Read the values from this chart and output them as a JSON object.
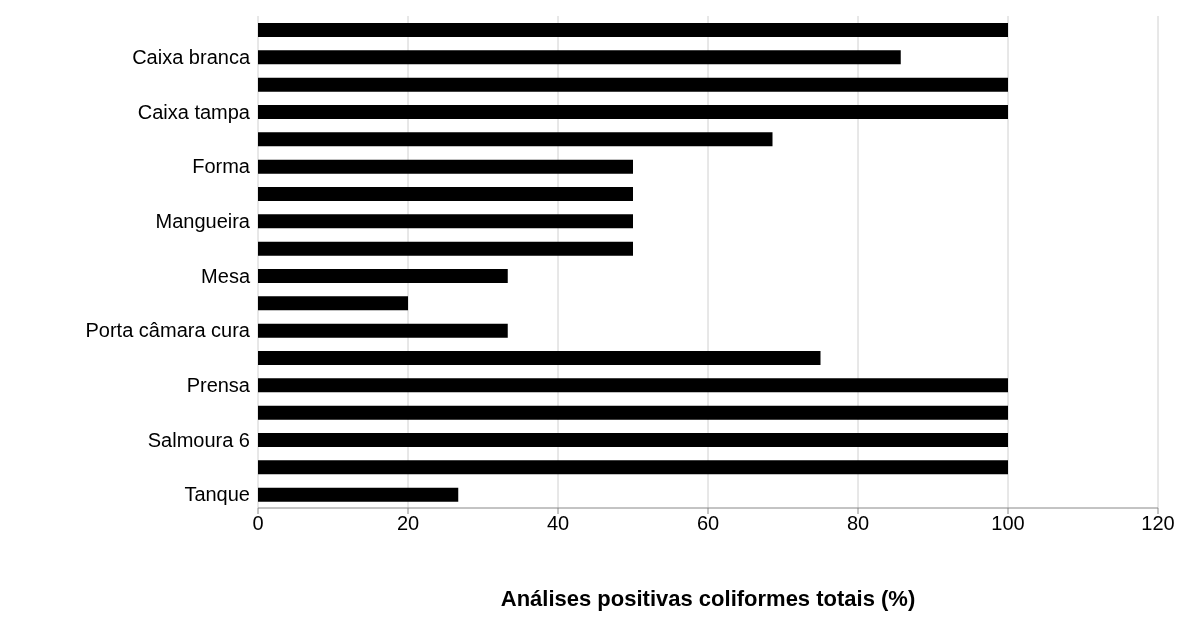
{
  "chart_data": {
    "type": "bar",
    "orientation": "horizontal",
    "xlabel": "Análises positivas coliformes totais (%)",
    "categories": [
      null,
      "Caixa branca",
      null,
      "Caixa tampa",
      null,
      "Forma",
      null,
      "Mangueira",
      null,
      "Mesa",
      null,
      "Porta câmara cura",
      null,
      "Prensa",
      null,
      "Salmoura 6",
      null,
      "Tanque"
    ],
    "values": [
      100,
      85.7,
      100,
      100,
      68.6,
      50,
      50,
      50,
      50,
      33.3,
      20,
      33.3,
      75,
      100,
      100,
      100,
      100,
      26.7
    ],
    "color": "#000000",
    "xlim": [
      0,
      120
    ],
    "xticks": [
      0,
      20,
      40,
      60,
      80,
      100,
      120
    ],
    "grid": "x"
  }
}
